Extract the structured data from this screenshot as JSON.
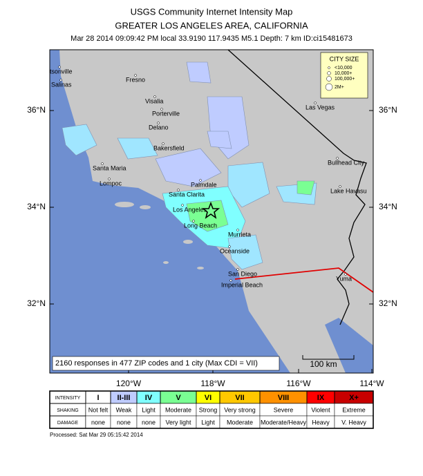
{
  "header": {
    "title": "USGS Community Internet Intensity Map",
    "subtitle": "GREATER LOS ANGELES AREA, CALIFORNIA",
    "event": "Mar 28 2014 09:09:42 PM local 33.9190 117.9435 M5.1 Depth: 7 km ID:ci15481673"
  },
  "map": {
    "lat_labels": [
      "36°N",
      "34°N",
      "32°N"
    ],
    "lon_labels": [
      "120°W",
      "118°W",
      "116°W",
      "114°W"
    ],
    "cities": [
      "tsonville",
      "Salinas",
      "Fresno",
      "Visalia",
      "Porterville",
      "Delano",
      "Bakersfield",
      "Santa Maria",
      "Lompoc",
      "Palmdale",
      "Santa Clarita",
      "Los Angeles",
      "Long Beach",
      "Murrieta",
      "Oceanside",
      "San Diego",
      "Imperial Beach",
      "Las Vegas",
      "Bullhead City",
      "Lake Havasu",
      "Yuma"
    ],
    "city_size": {
      "title": "CITY SIZE",
      "items": [
        "<10,000",
        "10,000+",
        "100,000+",
        "2M+"
      ]
    },
    "responses": "2160 responses in 477 ZIP codes and 1 city (Max CDI = VII)",
    "scale": "100 km"
  },
  "legend": {
    "rows": [
      [
        "INTENSITY",
        "I",
        "II-III",
        "IV",
        "V",
        "VI",
        "VII",
        "VIII",
        "IX",
        "X+"
      ],
      [
        "SHAKING",
        "Not felt",
        "Weak",
        "Light",
        "Moderate",
        "Strong",
        "Very strong",
        "Severe",
        "Violent",
        "Extreme"
      ],
      [
        "DAMAGE",
        "none",
        "none",
        "none",
        "Very light",
        "Light",
        "Moderate",
        "Moderate/Heavy",
        "Heavy",
        "V. Heavy"
      ]
    ]
  },
  "footer": "Processed: Sat Mar 29 05:15:42 2014"
}
